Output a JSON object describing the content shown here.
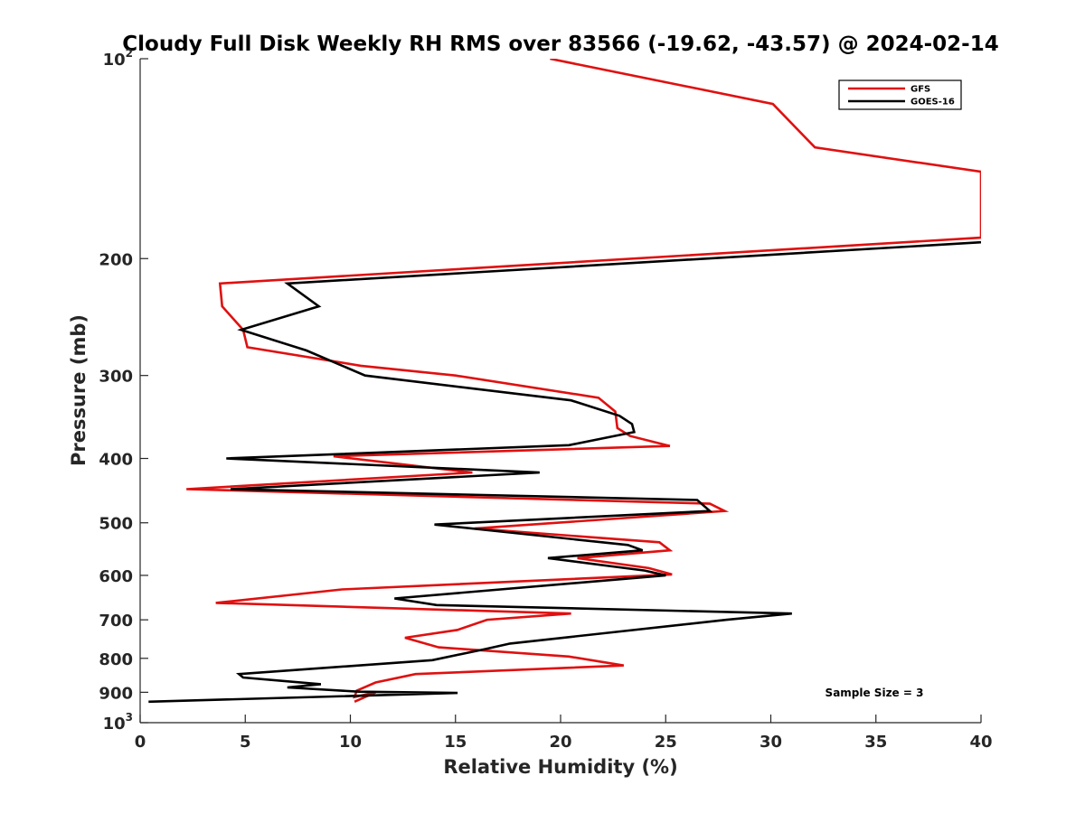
{
  "chart_data": {
    "type": "line",
    "title": "Cloudy Full Disk Weekly RH RMS over 83566 (-19.62, -43.57) @ 2024-02-14",
    "xlabel": "Relative Humidity (%)",
    "ylabel": "Pressure (mb)",
    "xlim": [
      0,
      40
    ],
    "ylim": [
      100,
      1000
    ],
    "yscale": "log",
    "y_reversed": true,
    "grid": false,
    "legend_position": "top-right",
    "x_ticks": [
      "0",
      "5",
      "10",
      "15",
      "20",
      "25",
      "30",
      "35",
      "40"
    ],
    "y_ticks": [
      {
        "value": 100,
        "base": "10",
        "exp": "2"
      },
      {
        "value": 200,
        "label": "200"
      },
      {
        "value": 300,
        "label": "300"
      },
      {
        "value": 400,
        "label": "400"
      },
      {
        "value": 500,
        "label": "500"
      },
      {
        "value": 600,
        "label": "600"
      },
      {
        "value": 700,
        "label": "700"
      },
      {
        "value": 800,
        "label": "800"
      },
      {
        "value": 900,
        "label": "900"
      },
      {
        "value": 1000,
        "base": "10",
        "exp": "3"
      }
    ],
    "series": [
      {
        "name": "GFS",
        "color": "#e01010",
        "points": [
          [
            19.5,
            100
          ],
          [
            30.1,
            117
          ],
          [
            32.1,
            136
          ],
          [
            40.0,
            148
          ],
          [
            40.0,
            186
          ],
          [
            3.8,
            218
          ],
          [
            3.9,
            236
          ],
          [
            4.9,
            256
          ],
          [
            5.1,
            272
          ],
          [
            10.5,
            290
          ],
          [
            15.0,
            300
          ],
          [
            21.8,
            324
          ],
          [
            22.6,
            340
          ],
          [
            22.7,
            360
          ],
          [
            23.3,
            370
          ],
          [
            25.2,
            383
          ],
          [
            9.2,
            397
          ],
          [
            15.8,
            420
          ],
          [
            2.2,
            445
          ],
          [
            27.1,
            468
          ],
          [
            27.8,
            480
          ],
          [
            15.9,
            510
          ],
          [
            24.7,
            535
          ],
          [
            25.2,
            550
          ],
          [
            20.8,
            565
          ],
          [
            24.2,
            585
          ],
          [
            25.3,
            598
          ],
          [
            9.6,
            630
          ],
          [
            3.6,
            660
          ],
          [
            20.5,
            685
          ],
          [
            16.5,
            700
          ],
          [
            15.1,
            725
          ],
          [
            12.6,
            745
          ],
          [
            14.2,
            770
          ],
          [
            20.4,
            795
          ],
          [
            23.0,
            820
          ],
          [
            13.1,
            845
          ],
          [
            11.2,
            870
          ],
          [
            10.3,
            895
          ],
          [
            10.2,
            915
          ],
          [
            11.2,
            900
          ],
          [
            10.2,
            930
          ]
        ]
      },
      {
        "name": "GOES-16",
        "color": "#000000",
        "points": [
          [
            40.0,
            189
          ],
          [
            7.0,
            218
          ],
          [
            8.5,
            236
          ],
          [
            4.8,
            256
          ],
          [
            7.9,
            275
          ],
          [
            10.7,
            300
          ],
          [
            20.5,
            327
          ],
          [
            22.8,
            345
          ],
          [
            23.4,
            355
          ],
          [
            23.5,
            365
          ],
          [
            20.4,
            382
          ],
          [
            4.1,
            400
          ],
          [
            19.0,
            420
          ],
          [
            4.3,
            445
          ],
          [
            26.5,
            462
          ],
          [
            27.1,
            480
          ],
          [
            14.0,
            503
          ],
          [
            23.2,
            540
          ],
          [
            23.9,
            550
          ],
          [
            19.4,
            565
          ],
          [
            24.0,
            590
          ],
          [
            25.0,
            600
          ],
          [
            12.1,
            650
          ],
          [
            14.1,
            665
          ],
          [
            31.0,
            685
          ],
          [
            27.9,
            700
          ],
          [
            17.6,
            760
          ],
          [
            16.4,
            775
          ],
          [
            13.9,
            805
          ],
          [
            4.7,
            845
          ],
          [
            4.9,
            855
          ],
          [
            8.6,
            875
          ],
          [
            7.0,
            885
          ],
          [
            10.4,
            898
          ],
          [
            15.1,
            902
          ],
          [
            0.4,
            930
          ]
        ]
      }
    ],
    "annotation": "Sample Size = 3"
  }
}
